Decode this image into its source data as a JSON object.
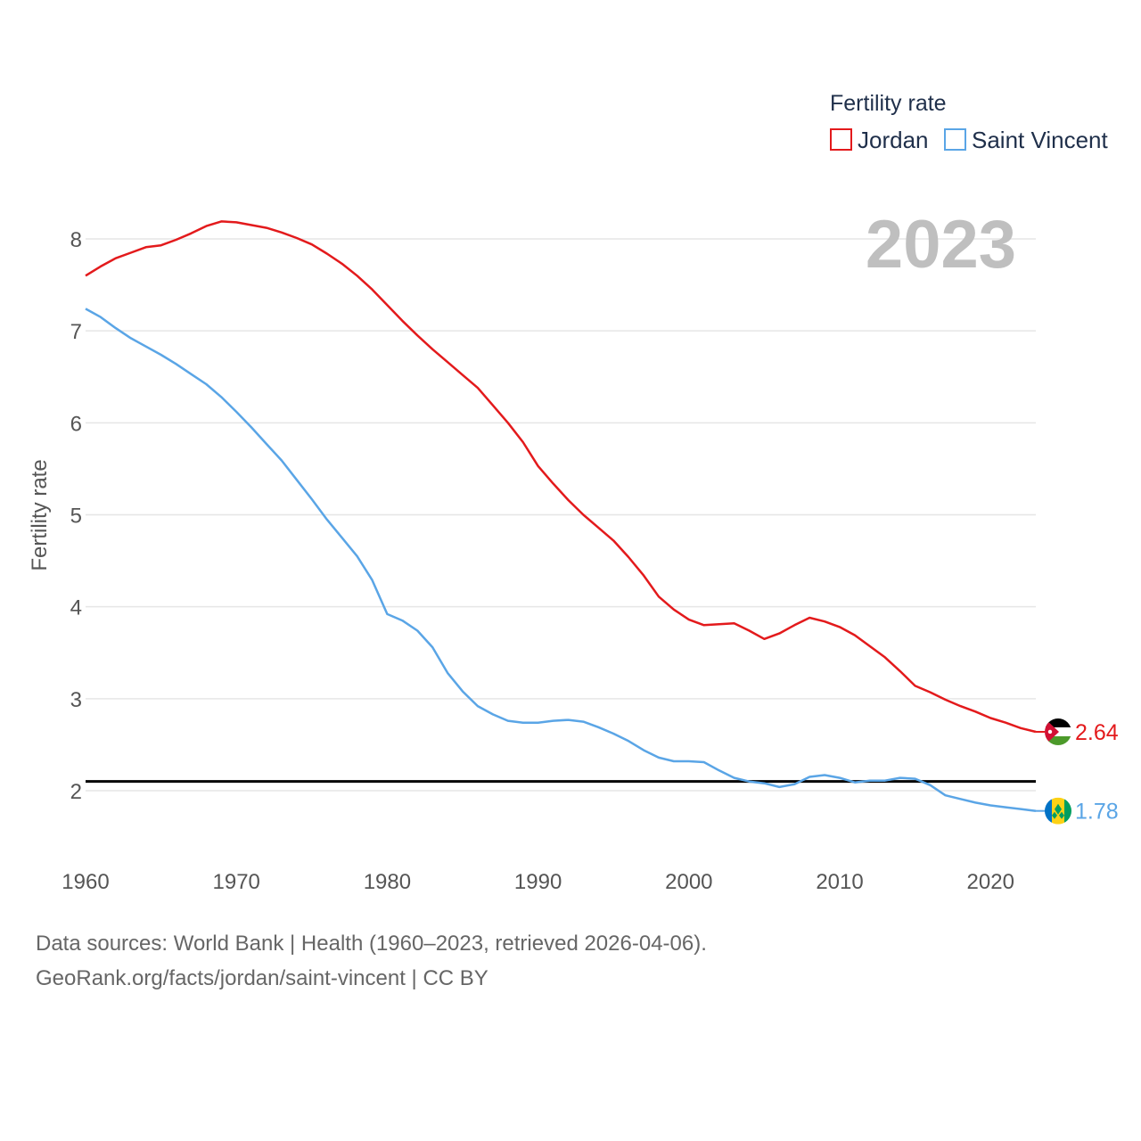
{
  "chart_data": {
    "type": "line",
    "ylabel": "Fertility rate",
    "xlabel": "",
    "legend_title": "Fertility rate",
    "legend_position": "top-right",
    "year_label": "2023",
    "xlim": [
      1960,
      2023
    ],
    "ylim": [
      1.5,
      8.5
    ],
    "x_ticks": [
      1960,
      1970,
      1980,
      1990,
      2000,
      2010,
      2020
    ],
    "y_ticks": [
      2,
      3,
      4,
      5,
      6,
      7,
      8
    ],
    "reference_line": 2.1,
    "x": [
      1960,
      1961,
      1962,
      1963,
      1964,
      1965,
      1966,
      1967,
      1968,
      1969,
      1970,
      1971,
      1972,
      1973,
      1974,
      1975,
      1976,
      1977,
      1978,
      1979,
      1980,
      1981,
      1982,
      1983,
      1984,
      1985,
      1986,
      1987,
      1988,
      1989,
      1990,
      1991,
      1992,
      1993,
      1994,
      1995,
      1996,
      1997,
      1998,
      1999,
      2000,
      2001,
      2002,
      2003,
      2004,
      2005,
      2006,
      2007,
      2008,
      2009,
      2010,
      2011,
      2012,
      2013,
      2014,
      2015,
      2016,
      2017,
      2018,
      2019,
      2020,
      2021,
      2022,
      2023
    ],
    "series": [
      {
        "name": "Jordan",
        "color": "#e31a1c",
        "end_label": "2.64",
        "flag": "jordan-flag",
        "values": [
          7.6,
          7.7,
          7.79,
          7.85,
          7.91,
          7.93,
          7.99,
          8.06,
          8.14,
          8.19,
          8.18,
          8.15,
          8.12,
          8.07,
          8.01,
          7.94,
          7.84,
          7.73,
          7.6,
          7.45,
          7.28,
          7.11,
          6.95,
          6.8,
          6.66,
          6.52,
          6.38,
          6.19,
          6.0,
          5.79,
          5.53,
          5.34,
          5.16,
          5.0,
          4.86,
          4.72,
          4.54,
          4.34,
          4.11,
          3.97,
          3.86,
          3.8,
          3.81,
          3.82,
          3.74,
          3.65,
          3.71,
          3.8,
          3.88,
          3.84,
          3.78,
          3.69,
          3.57,
          3.45,
          3.3,
          3.14,
          3.07,
          2.99,
          2.92,
          2.86,
          2.79,
          2.74,
          2.68,
          2.64
        ]
      },
      {
        "name": "Saint Vincent",
        "color": "#5aa5e6",
        "end_label": "1.78",
        "flag": "saint-vincent-flag",
        "values": [
          7.24,
          7.15,
          7.03,
          6.92,
          6.83,
          6.74,
          6.64,
          6.53,
          6.42,
          6.28,
          6.12,
          5.95,
          5.77,
          5.59,
          5.38,
          5.17,
          4.95,
          4.75,
          4.55,
          4.29,
          3.92,
          3.85,
          3.74,
          3.56,
          3.28,
          3.08,
          2.92,
          2.83,
          2.76,
          2.74,
          2.74,
          2.76,
          2.77,
          2.75,
          2.69,
          2.62,
          2.54,
          2.44,
          2.36,
          2.32,
          2.32,
          2.31,
          2.22,
          2.14,
          2.1,
          2.08,
          2.04,
          2.07,
          2.15,
          2.17,
          2.14,
          2.09,
          2.11,
          2.11,
          2.14,
          2.13,
          2.06,
          1.95,
          1.91,
          1.87,
          1.84,
          1.82,
          1.8,
          1.78
        ]
      }
    ]
  },
  "footer": {
    "source_line": "Data sources: World Bank | Health (1960–2023, retrieved 2026-04-06).",
    "url_line": "GeoRank.org/facts/jordan/saint-vincent | CC BY"
  }
}
